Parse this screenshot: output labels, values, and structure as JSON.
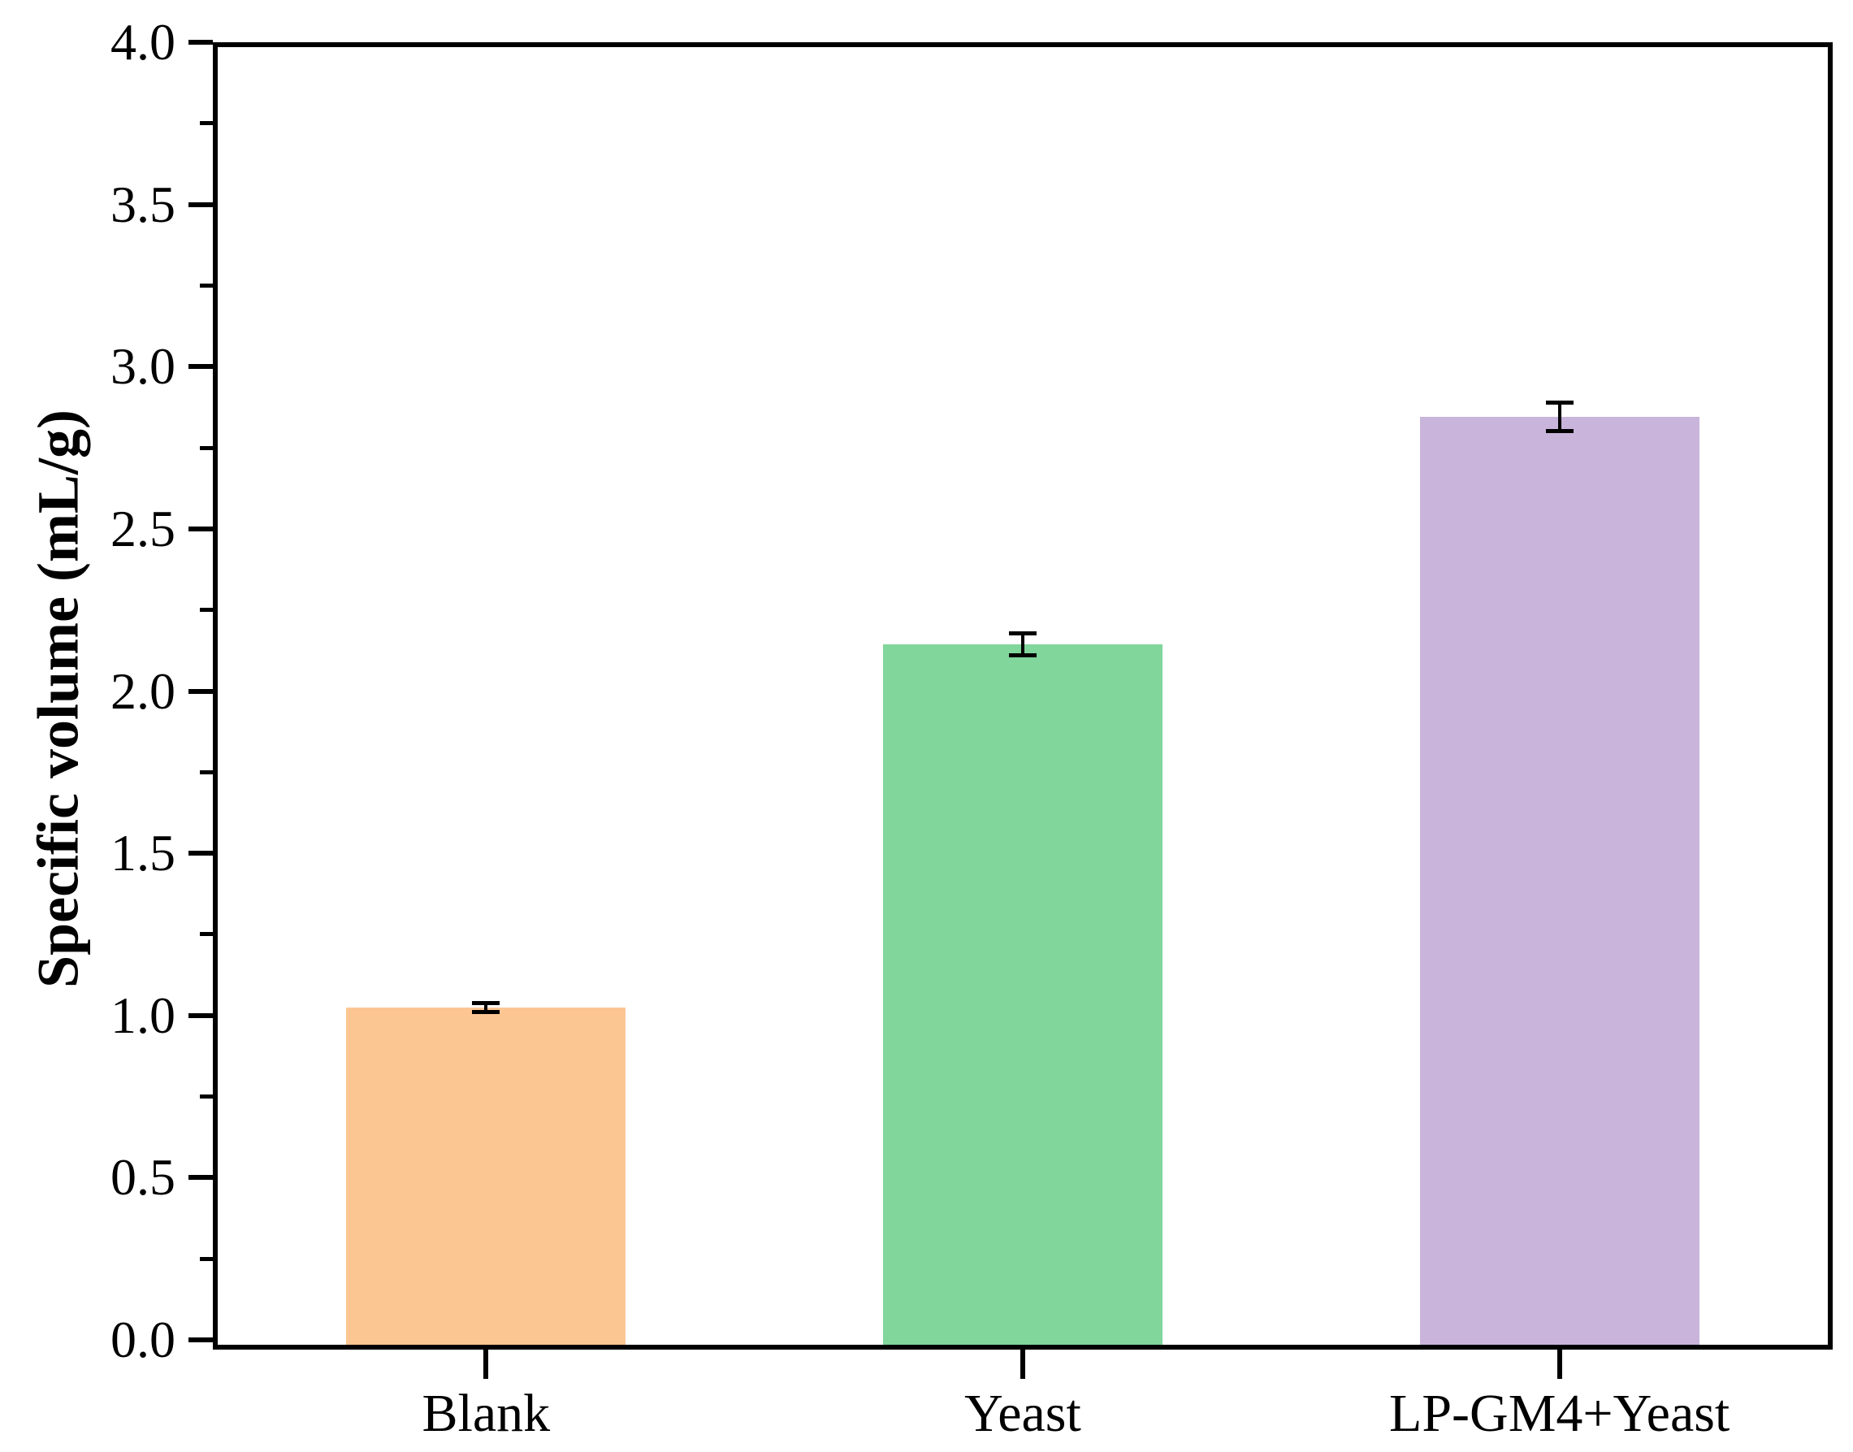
{
  "chart_data": {
    "type": "bar",
    "title": "",
    "xlabel": "",
    "ylabel": "Specific volume (mL/g)",
    "categories": [
      "Blank",
      "Yeast",
      "LP-GM4+Yeast"
    ],
    "values": [
      1.04,
      2.16,
      2.86
    ],
    "errors": [
      0.01,
      0.03,
      0.04
    ],
    "bar_colors": [
      "#FCC693",
      "#80D69B",
      "#C9B4DB"
    ],
    "ylim": [
      0.0,
      4.0
    ],
    "y_major_step": 0.5,
    "y_minor_step": 0.25,
    "y_tick_labels": [
      "0.0",
      "0.5",
      "1.0",
      "1.5",
      "2.0",
      "2.5",
      "3.0",
      "3.5",
      "4.0"
    ],
    "grid": false,
    "legend": null,
    "axis_color": "#000000",
    "error_bar_color": "#000000"
  }
}
